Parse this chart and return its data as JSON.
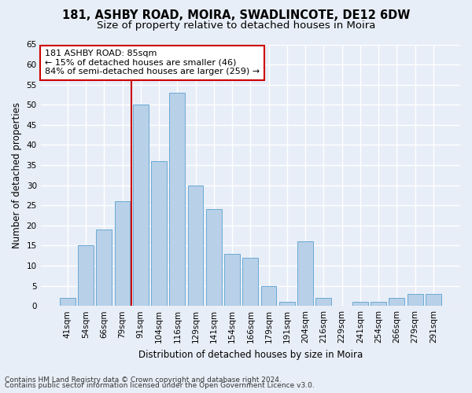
{
  "title1": "181, ASHBY ROAD, MOIRA, SWADLINCOTE, DE12 6DW",
  "title2": "Size of property relative to detached houses in Moira",
  "xlabel": "Distribution of detached houses by size in Moira",
  "ylabel": "Number of detached properties",
  "categories": [
    "41sqm",
    "54sqm",
    "66sqm",
    "79sqm",
    "91sqm",
    "104sqm",
    "116sqm",
    "129sqm",
    "141sqm",
    "154sqm",
    "166sqm",
    "179sqm",
    "191sqm",
    "204sqm",
    "216sqm",
    "229sqm",
    "241sqm",
    "254sqm",
    "266sqm",
    "279sqm",
    "291sqm"
  ],
  "values": [
    2,
    15,
    19,
    26,
    50,
    36,
    53,
    30,
    24,
    13,
    12,
    5,
    1,
    16,
    2,
    0,
    1,
    1,
    2,
    3,
    3
  ],
  "bar_color": "#b8d0e8",
  "bar_edge_color": "#6aaad4",
  "ylim": [
    0,
    65
  ],
  "yticks": [
    0,
    5,
    10,
    15,
    20,
    25,
    30,
    35,
    40,
    45,
    50,
    55,
    60,
    65
  ],
  "vline_x": 3.5,
  "vline_color": "#cc0000",
  "annotation_text": "181 ASHBY ROAD: 85sqm\n← 15% of detached houses are smaller (46)\n84% of semi-detached houses are larger (259) →",
  "annotation_box_color": "#ffffff",
  "annotation_box_edge": "#cc0000",
  "footer1": "Contains HM Land Registry data © Crown copyright and database right 2024.",
  "footer2": "Contains public sector information licensed under the Open Government Licence v3.0.",
  "bg_color": "#e8eef7",
  "plot_bg_color": "#e8eef7",
  "title1_fontsize": 10.5,
  "title2_fontsize": 9.5,
  "tick_fontsize": 7.5,
  "ylabel_fontsize": 8.5,
  "xlabel_fontsize": 8.5,
  "annotation_fontsize": 8,
  "footer_fontsize": 6.5
}
